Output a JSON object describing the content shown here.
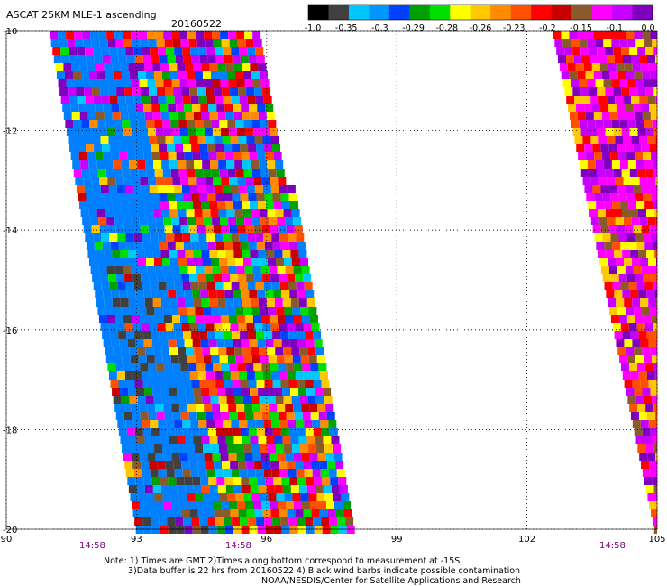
{
  "header": {
    "title": "ASCAT 25KM MLE-1 ascending",
    "date": "20160522"
  },
  "colorbar": {
    "colors": [
      "#000000",
      "#404040",
      "#00c8ff",
      "#0096ff",
      "#0040ff",
      "#00a000",
      "#00e000",
      "#ffff00",
      "#ffc800",
      "#ff8c00",
      "#ff5000",
      "#ff0000",
      "#c80000",
      "#8b5a2b",
      "#ff00ff",
      "#c800ff",
      "#8000c0"
    ],
    "labels": [
      "-1.0",
      "-0.35",
      "-0.3",
      "-0.29",
      "-0.28",
      "-0.26",
      "-0.23",
      "-0.2",
      "-0.15",
      "-0.1",
      "0.0"
    ]
  },
  "axes": {
    "lon_ticks": [
      "90",
      "93",
      "96",
      "99",
      "102",
      "105"
    ],
    "lat_ticks": [
      "-10",
      "-12",
      "-14",
      "-16",
      "-18",
      "-20"
    ],
    "lon_range": [
      90,
      105
    ],
    "lat_range": [
      -20,
      -10
    ],
    "grid": "dotted"
  },
  "times": [
    "14:58",
    "14:58",
    "14:58"
  ],
  "notes": {
    "line1": "Note: 1) Times are GMT 2)Times along bottom correspond to measurement at -15S",
    "line2": "3)Data buffer is 22 hrs from 20160522 4) Black wind barbs indicate possible contamination",
    "line3": "NOAA/NESDIS/Center for Satellite Applications and Research"
  },
  "swaths": [
    {
      "name": "west-swath",
      "lat_top": -10,
      "lat_bottom": -20,
      "lon_left_top": 91.0,
      "lon_right_top": 95.8,
      "lon_left_bottom": 93.0,
      "lon_right_bottom": 98.0
    },
    {
      "name": "east-swath",
      "lat_top": -10,
      "lat_bottom": -20,
      "lon_left_top": 102.6,
      "lon_right_top": 105.0,
      "lon_left_bottom": 104.95,
      "lon_right_bottom": 105.0
    }
  ]
}
